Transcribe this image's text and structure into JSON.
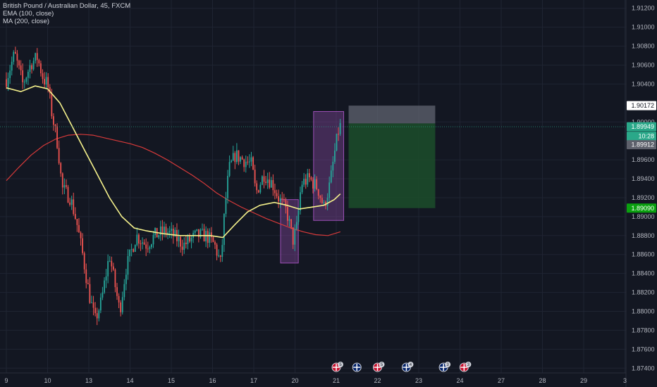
{
  "legend": {
    "title": "British Pound / Australian Dollar, 45, FXCM",
    "ema": "EMA (100, close)",
    "ma": "MA (200, close)"
  },
  "colors": {
    "background": "#131722",
    "grid": "#1f2432",
    "axis_text": "#b2b5be",
    "up_candle": "#26a69a",
    "down_candle": "#ef5350",
    "ema_line": "#f6f28c",
    "ma_line": "#d83a3a",
    "highlight_box": "#9b4fb5",
    "stop_zone": "#606470",
    "target_zone": "#1c4d2a",
    "current_price_tag": "#2aa889",
    "target_price_tag": "#0aa00f"
  },
  "chart_data": {
    "type": "candlestick",
    "symbol": "British Pound / Australian Dollar",
    "timeframe": "45",
    "source": "FXCM",
    "x_ticks": [
      "9",
      "10",
      "13",
      "14",
      "15",
      "16",
      "17",
      "20",
      "21",
      "22",
      "23",
      "24",
      "27",
      "28",
      "29",
      "3"
    ],
    "y_ticks": [
      "1.91200",
      "1.91000",
      "1.90800",
      "1.90600",
      "1.90400",
      "1.90000",
      "1.89600",
      "1.89400",
      "1.89200",
      "1.89000",
      "1.88800",
      "1.88600",
      "1.88400",
      "1.88200",
      "1.88000",
      "1.87800",
      "1.87600",
      "1.87400"
    ],
    "ylim": [
      1.8735,
      1.9125
    ],
    "close_path": [
      {
        "x": 0.0,
        "y": 1.9045
      },
      {
        "x": 0.2,
        "y": 1.9072
      },
      {
        "x": 0.4,
        "y": 1.904
      },
      {
        "x": 0.6,
        "y": 1.9062
      },
      {
        "x": 0.75,
        "y": 1.9068
      },
      {
        "x": 0.9,
        "y": 1.9045
      },
      {
        "x": 1.0,
        "y": 1.904
      },
      {
        "x": 1.1,
        "y": 1.901
      },
      {
        "x": 1.25,
        "y": 1.8975
      },
      {
        "x": 1.35,
        "y": 1.893
      },
      {
        "x": 1.55,
        "y": 1.892
      },
      {
        "x": 1.7,
        "y": 1.8895
      },
      {
        "x": 1.85,
        "y": 1.886
      },
      {
        "x": 2.0,
        "y": 1.882
      },
      {
        "x": 2.15,
        "y": 1.879
      },
      {
        "x": 2.3,
        "y": 1.881
      },
      {
        "x": 2.5,
        "y": 1.886
      },
      {
        "x": 2.75,
        "y": 1.88
      },
      {
        "x": 2.9,
        "y": 1.8845
      },
      {
        "x": 3.15,
        "y": 1.888
      },
      {
        "x": 3.4,
        "y": 1.887
      },
      {
        "x": 3.6,
        "y": 1.888
      },
      {
        "x": 3.85,
        "y": 1.8885
      },
      {
        "x": 4.05,
        "y": 1.888
      },
      {
        "x": 4.3,
        "y": 1.887
      },
      {
        "x": 4.6,
        "y": 1.888
      },
      {
        "x": 4.85,
        "y": 1.888
      },
      {
        "x": 5.05,
        "y": 1.887
      },
      {
        "x": 5.2,
        "y": 1.885
      },
      {
        "x": 5.3,
        "y": 1.891
      },
      {
        "x": 5.4,
        "y": 1.895
      },
      {
        "x": 5.55,
        "y": 1.8965
      },
      {
        "x": 5.75,
        "y": 1.896
      },
      {
        "x": 5.95,
        "y": 1.8955
      },
      {
        "x": 6.05,
        "y": 1.8925
      },
      {
        "x": 6.25,
        "y": 1.8945
      },
      {
        "x": 6.45,
        "y": 1.8935
      },
      {
        "x": 6.6,
        "y": 1.892
      },
      {
        "x": 6.8,
        "y": 1.8905
      },
      {
        "x": 6.95,
        "y": 1.8875
      },
      {
        "x": 7.05,
        "y": 1.889
      },
      {
        "x": 7.15,
        "y": 1.8935
      },
      {
        "x": 7.35,
        "y": 1.894
      },
      {
        "x": 7.55,
        "y": 1.893
      },
      {
        "x": 7.7,
        "y": 1.891
      },
      {
        "x": 7.85,
        "y": 1.8935
      },
      {
        "x": 7.95,
        "y": 1.8965
      },
      {
        "x": 8.05,
        "y": 1.899
      },
      {
        "x": 8.12,
        "y": 1.8998
      }
    ],
    "ema_100": [
      {
        "x": 0.0,
        "y": 1.9036
      },
      {
        "x": 0.35,
        "y": 1.9032
      },
      {
        "x": 0.7,
        "y": 1.9038
      },
      {
        "x": 1.0,
        "y": 1.9035
      },
      {
        "x": 1.3,
        "y": 1.902
      },
      {
        "x": 1.6,
        "y": 1.8995
      },
      {
        "x": 1.9,
        "y": 1.897
      },
      {
        "x": 2.2,
        "y": 1.8945
      },
      {
        "x": 2.5,
        "y": 1.892
      },
      {
        "x": 2.8,
        "y": 1.89
      },
      {
        "x": 3.1,
        "y": 1.8888
      },
      {
        "x": 3.4,
        "y": 1.8885
      },
      {
        "x": 3.8,
        "y": 1.8882
      },
      {
        "x": 4.2,
        "y": 1.888
      },
      {
        "x": 4.6,
        "y": 1.888
      },
      {
        "x": 4.95,
        "y": 1.888
      },
      {
        "x": 5.25,
        "y": 1.8878
      },
      {
        "x": 5.55,
        "y": 1.8892
      },
      {
        "x": 5.85,
        "y": 1.8905
      },
      {
        "x": 6.15,
        "y": 1.8912
      },
      {
        "x": 6.5,
        "y": 1.8915
      },
      {
        "x": 6.8,
        "y": 1.8912
      },
      {
        "x": 7.1,
        "y": 1.8908
      },
      {
        "x": 7.4,
        "y": 1.891
      },
      {
        "x": 7.7,
        "y": 1.8912
      },
      {
        "x": 7.95,
        "y": 1.8918
      },
      {
        "x": 8.1,
        "y": 1.8924
      }
    ],
    "ma_200": [
      {
        "x": 0.0,
        "y": 1.8938
      },
      {
        "x": 0.3,
        "y": 1.8952
      },
      {
        "x": 0.6,
        "y": 1.8965
      },
      {
        "x": 0.9,
        "y": 1.8975
      },
      {
        "x": 1.2,
        "y": 1.8982
      },
      {
        "x": 1.5,
        "y": 1.8986
      },
      {
        "x": 1.8,
        "y": 1.8987
      },
      {
        "x": 2.1,
        "y": 1.8986
      },
      {
        "x": 2.4,
        "y": 1.8983
      },
      {
        "x": 2.7,
        "y": 1.898
      },
      {
        "x": 3.0,
        "y": 1.8977
      },
      {
        "x": 3.3,
        "y": 1.8973
      },
      {
        "x": 3.6,
        "y": 1.8967
      },
      {
        "x": 3.9,
        "y": 1.896
      },
      {
        "x": 4.2,
        "y": 1.8952
      },
      {
        "x": 4.5,
        "y": 1.8944
      },
      {
        "x": 4.8,
        "y": 1.8935
      },
      {
        "x": 5.1,
        "y": 1.8925
      },
      {
        "x": 5.4,
        "y": 1.8917
      },
      {
        "x": 5.7,
        "y": 1.891
      },
      {
        "x": 6.0,
        "y": 1.8904
      },
      {
        "x": 6.3,
        "y": 1.8898
      },
      {
        "x": 6.6,
        "y": 1.8893
      },
      {
        "x": 6.9,
        "y": 1.8888
      },
      {
        "x": 7.2,
        "y": 1.8884
      },
      {
        "x": 7.5,
        "y": 1.8881
      },
      {
        "x": 7.8,
        "y": 1.888
      },
      {
        "x": 8.1,
        "y": 1.8884
      }
    ],
    "highlight_boxes": [
      {
        "x0": 6.65,
        "x1": 7.08,
        "y_top": 1.8918,
        "y_bottom": 1.8851
      },
      {
        "x0": 7.45,
        "x1": 8.18,
        "y_top": 1.9011,
        "y_bottom": 1.8896
      }
    ],
    "position": {
      "x0": 8.3,
      "x1": 10.4,
      "stop": 1.90172,
      "entry": 1.89984,
      "target": 1.8909
    },
    "price_labels": [
      {
        "value": "1.90172",
        "price": 1.90172,
        "style": "stop"
      },
      {
        "value": "1.89949",
        "price": 1.89949,
        "style": "current"
      },
      {
        "value": "10:28",
        "price": 1.89849,
        "style": "countdown"
      },
      {
        "value": "1.89912",
        "price": 1.8976,
        "style": "prev"
      },
      {
        "value": "1.89090",
        "price": 1.8909,
        "style": "target"
      }
    ],
    "events": [
      {
        "x": 8.0,
        "badge": "5",
        "flag": "uk"
      },
      {
        "x": 8.5,
        "badge": "",
        "flag": "au"
      },
      {
        "x": 9.0,
        "badge": "5",
        "flag": "uk"
      },
      {
        "x": 9.7,
        "badge": "4",
        "flag": "au"
      },
      {
        "x": 10.6,
        "badge": "3",
        "flag": "au"
      },
      {
        "x": 11.1,
        "badge": "3",
        "flag": "uk"
      }
    ]
  }
}
